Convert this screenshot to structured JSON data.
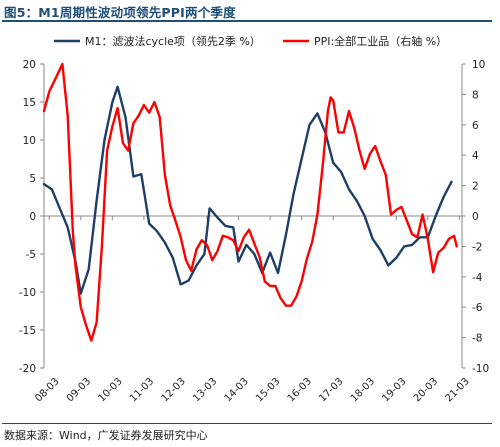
{
  "figure": {
    "title": "图5：M1周期性波动项领先PPI两个季度",
    "source": "数据来源：Wind，广发证券发展研究中心"
  },
  "colors": {
    "m1": "#1f3f66",
    "ppi": "#ff0000",
    "title": "#1f4e79"
  },
  "chart_data": {
    "type": "line",
    "x_ticks": [
      "08-03",
      "09-03",
      "10-03",
      "11-03",
      "12-03",
      "13-03",
      "14-03",
      "15-03",
      "16-03",
      "17-03",
      "18-03",
      "19-03",
      "20-03",
      "21-03"
    ],
    "x_range": [
      "08-01",
      "21-04"
    ],
    "left_axis": {
      "ylim": [
        -20,
        20
      ],
      "ticks": [
        -20,
        -15,
        -10,
        -5,
        0,
        5,
        10,
        15,
        20
      ]
    },
    "right_axis": {
      "ylim": [
        -10,
        10
      ],
      "ticks": [
        -10,
        -8,
        -6,
        -4,
        -2,
        0,
        2,
        4,
        6,
        8,
        10
      ]
    },
    "legend_position": "top",
    "series": [
      {
        "name": "M1：滤波法cycle项（领先2季 %）",
        "axis": "left",
        "color": "#1f3f66",
        "points": [
          [
            "08-01",
            4.2
          ],
          [
            "08-04",
            3.5
          ],
          [
            "08-07",
            1.0
          ],
          [
            "08-10",
            -1.5
          ],
          [
            "09-01",
            -6.0
          ],
          [
            "09-03",
            -10.2
          ],
          [
            "09-06",
            -7.0
          ],
          [
            "09-09",
            2.0
          ],
          [
            "09-12",
            10.0
          ],
          [
            "10-03",
            15.0
          ],
          [
            "10-05",
            17.0
          ],
          [
            "10-08",
            13.0
          ],
          [
            "10-11",
            5.2
          ],
          [
            "11-02",
            5.5
          ],
          [
            "11-05",
            -1.0
          ],
          [
            "11-08",
            -2.0
          ],
          [
            "11-11",
            -3.5
          ],
          [
            "12-02",
            -5.5
          ],
          [
            "12-05",
            -9.0
          ],
          [
            "12-08",
            -8.5
          ],
          [
            "12-11",
            -6.5
          ],
          [
            "13-02",
            -5.0
          ],
          [
            "13-04",
            1.0
          ],
          [
            "13-07",
            -0.2
          ],
          [
            "13-10",
            -1.3
          ],
          [
            "14-01",
            -1.5
          ],
          [
            "14-03",
            -6.0
          ],
          [
            "14-06",
            -3.8
          ],
          [
            "14-09",
            -5.0
          ],
          [
            "14-12",
            -7.5
          ],
          [
            "15-03",
            -4.8
          ],
          [
            "15-06",
            -7.5
          ],
          [
            "15-09",
            -2.5
          ],
          [
            "15-12",
            3.0
          ],
          [
            "16-03",
            7.5
          ],
          [
            "16-06",
            12.0
          ],
          [
            "16-09",
            13.5
          ],
          [
            "16-12",
            11.0
          ],
          [
            "17-03",
            7.0
          ],
          [
            "17-06",
            5.8
          ],
          [
            "17-09",
            3.5
          ],
          [
            "17-12",
            2.0
          ],
          [
            "18-03",
            0.0
          ],
          [
            "18-06",
            -3.0
          ],
          [
            "18-09",
            -4.5
          ],
          [
            "18-12",
            -6.5
          ],
          [
            "19-03",
            -5.5
          ],
          [
            "19-06",
            -4.0
          ],
          [
            "19-09",
            -3.8
          ],
          [
            "19-12",
            -2.8
          ],
          [
            "20-03",
            -2.8
          ],
          [
            "20-06",
            0.0
          ],
          [
            "20-09",
            2.5
          ],
          [
            "20-12",
            4.5
          ]
        ]
      },
      {
        "name": "PPI:全部工业品（右轴 %）",
        "axis": "right",
        "color": "#ff0000",
        "points": [
          [
            "08-01",
            6.9
          ],
          [
            "08-03",
            8.2
          ],
          [
            "08-05",
            8.9
          ],
          [
            "08-08",
            10.0
          ],
          [
            "08-10",
            6.6
          ],
          [
            "08-12",
            -1.1
          ],
          [
            "09-01",
            -3.3
          ],
          [
            "09-03",
            -6.0
          ],
          [
            "09-05",
            -7.2
          ],
          [
            "09-07",
            -8.2
          ],
          [
            "09-09",
            -7.0
          ],
          [
            "09-11",
            -2.1
          ],
          [
            "10-01",
            4.3
          ],
          [
            "10-03",
            5.9
          ],
          [
            "10-05",
            7.1
          ],
          [
            "10-07",
            4.8
          ],
          [
            "10-09",
            4.3
          ],
          [
            "10-11",
            6.1
          ],
          [
            "11-01",
            6.6
          ],
          [
            "11-03",
            7.3
          ],
          [
            "11-05",
            6.8
          ],
          [
            "11-07",
            7.5
          ],
          [
            "11-09",
            6.5
          ],
          [
            "11-11",
            2.7
          ],
          [
            "12-01",
            0.7
          ],
          [
            "12-03",
            -0.3
          ],
          [
            "12-05",
            -1.4
          ],
          [
            "12-07",
            -2.9
          ],
          [
            "12-09",
            -3.6
          ],
          [
            "12-11",
            -2.2
          ],
          [
            "13-01",
            -1.6
          ],
          [
            "13-03",
            -1.9
          ],
          [
            "13-05",
            -2.9
          ],
          [
            "13-07",
            -2.3
          ],
          [
            "13-09",
            -1.3
          ],
          [
            "13-11",
            -1.4
          ],
          [
            "14-01",
            -1.6
          ],
          [
            "14-03",
            -2.3
          ],
          [
            "14-05",
            -1.4
          ],
          [
            "14-07",
            -0.9
          ],
          [
            "14-09",
            -1.8
          ],
          [
            "14-11",
            -2.7
          ],
          [
            "15-01",
            -4.3
          ],
          [
            "15-03",
            -4.6
          ],
          [
            "15-05",
            -4.6
          ],
          [
            "15-07",
            -5.4
          ],
          [
            "15-09",
            -5.9
          ],
          [
            "15-11",
            -5.9
          ],
          [
            "16-01",
            -5.3
          ],
          [
            "16-03",
            -4.3
          ],
          [
            "16-05",
            -2.8
          ],
          [
            "16-07",
            -1.7
          ],
          [
            "16-09",
            0.1
          ],
          [
            "16-11",
            3.3
          ],
          [
            "17-01",
            6.9
          ],
          [
            "17-02",
            7.8
          ],
          [
            "17-03",
            7.6
          ],
          [
            "17-05",
            5.5
          ],
          [
            "17-07",
            5.5
          ],
          [
            "17-09",
            6.9
          ],
          [
            "17-11",
            5.8
          ],
          [
            "18-01",
            4.3
          ],
          [
            "18-03",
            3.1
          ],
          [
            "18-05",
            4.1
          ],
          [
            "18-07",
            4.6
          ],
          [
            "18-09",
            3.6
          ],
          [
            "18-11",
            2.7
          ],
          [
            "19-01",
            0.1
          ],
          [
            "19-03",
            0.4
          ],
          [
            "19-05",
            0.6
          ],
          [
            "19-07",
            -0.3
          ],
          [
            "19-09",
            -1.2
          ],
          [
            "19-11",
            -1.4
          ],
          [
            "20-01",
            0.1
          ],
          [
            "20-03",
            -1.5
          ],
          [
            "20-05",
            -3.7
          ],
          [
            "20-07",
            -2.4
          ],
          [
            "20-09",
            -2.1
          ],
          [
            "20-11",
            -1.5
          ],
          [
            "21-01",
            -1.3
          ],
          [
            "21-02",
            -2.0
          ]
        ]
      }
    ]
  }
}
